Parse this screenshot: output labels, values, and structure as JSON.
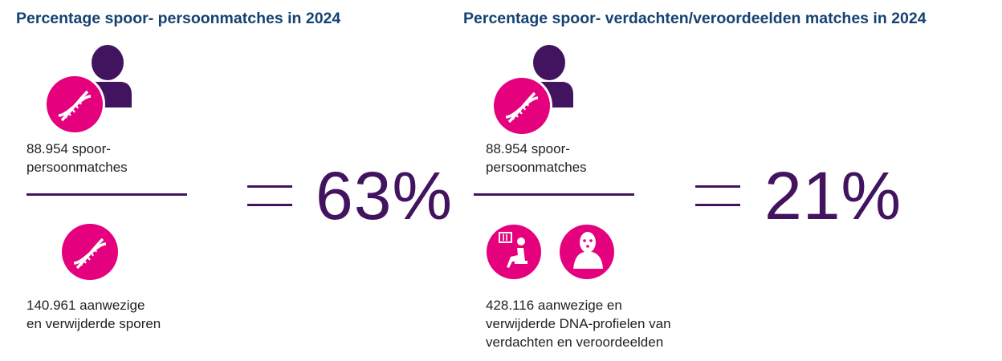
{
  "left": {
    "title": "Percentage spoor- persoonmatches in 2024",
    "numerator_line1": "88.954 spoor-",
    "numerator_line2": "persoonmatches",
    "denominator_line1": "140.961 aanwezige",
    "denominator_line2": "en verwijderde sporen",
    "result": "63%",
    "icons": [
      "person-icon",
      "dna-icon",
      "dna-icon"
    ]
  },
  "right": {
    "title": "Percentage spoor- verdachten/veroordeelden matches in 2024",
    "numerator_line1": "88.954 spoor-",
    "numerator_line2": "persoonmatches",
    "denominator_line1": "428.116 aanwezige en",
    "denominator_line2": "verwijderde DNA-profielen van",
    "denominator_line3": "verdachten en veroordeelden",
    "result": "21%",
    "icons": [
      "person-icon",
      "dna-icon",
      "prisoner-icon",
      "masked-suspect-icon"
    ]
  },
  "colors": {
    "title": "#154273",
    "magenta": "#e5007d",
    "purple": "#42145f"
  }
}
